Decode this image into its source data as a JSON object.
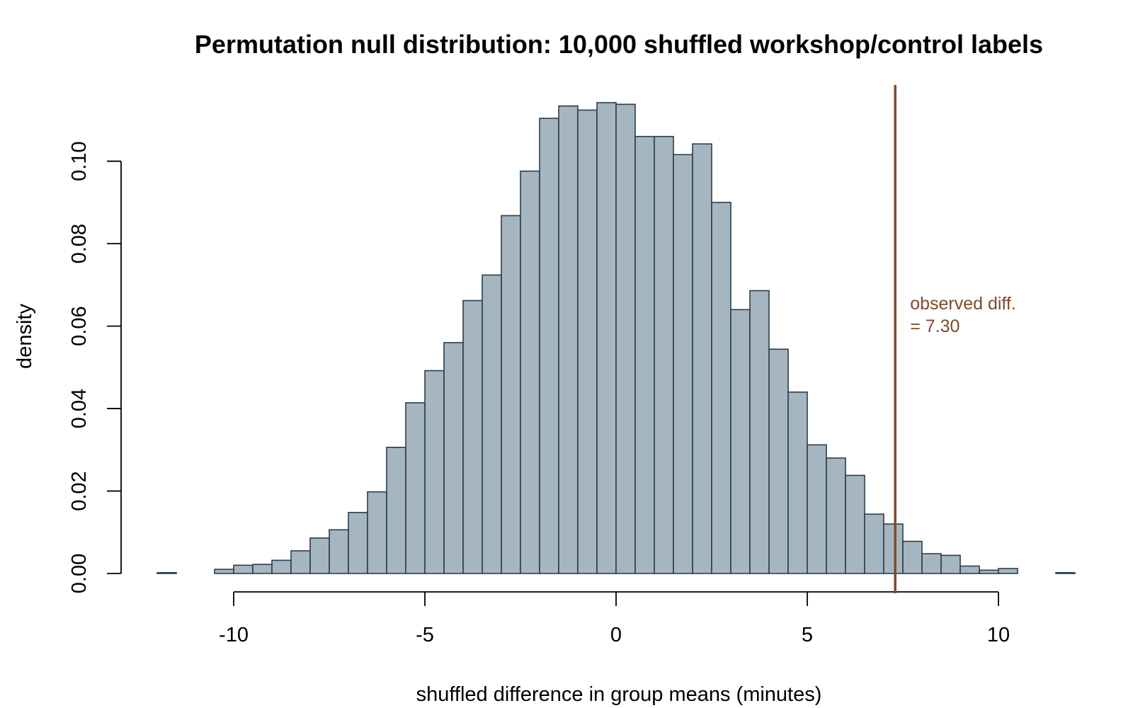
{
  "chart_data": {
    "type": "bar",
    "title": "Permutation null distribution: 10,000 shuffled workshop/control labels",
    "xlabel": "shuffled difference in group means (minutes)",
    "ylabel": "density",
    "xlim": [
      -12,
      12
    ],
    "ylim": [
      0,
      0.12
    ],
    "bin_width": 0.5,
    "x_ticks": [
      {
        "value": -10,
        "label": "-10"
      },
      {
        "value": -5,
        "label": "-5"
      },
      {
        "value": 0,
        "label": "0"
      },
      {
        "value": 5,
        "label": "5"
      },
      {
        "value": 10,
        "label": "10"
      }
    ],
    "y_ticks": [
      {
        "value": 0,
        "label": "0.00"
      },
      {
        "value": 0.02,
        "label": "0.02"
      },
      {
        "value": 0.04,
        "label": "0.04"
      },
      {
        "value": 0.06,
        "label": "0.06"
      },
      {
        "value": 0.08,
        "label": "0.08"
      },
      {
        "value": 0.1,
        "label": "0.10"
      }
    ],
    "bins": [
      {
        "x0": -12.0,
        "density": 0.0002
      },
      {
        "x0": -11.5,
        "density": 0.0
      },
      {
        "x0": -11.0,
        "density": 0.0
      },
      {
        "x0": -10.5,
        "density": 0.001
      },
      {
        "x0": -10.0,
        "density": 0.002
      },
      {
        "x0": -9.5,
        "density": 0.0022
      },
      {
        "x0": -9.0,
        "density": 0.0032
      },
      {
        "x0": -8.5,
        "density": 0.0055
      },
      {
        "x0": -8.0,
        "density": 0.0086
      },
      {
        "x0": -7.5,
        "density": 0.0106
      },
      {
        "x0": -7.0,
        "density": 0.0148
      },
      {
        "x0": -6.5,
        "density": 0.0198
      },
      {
        "x0": -6.0,
        "density": 0.0306
      },
      {
        "x0": -5.5,
        "density": 0.0414
      },
      {
        "x0": -5.0,
        "density": 0.0492
      },
      {
        "x0": -4.5,
        "density": 0.056
      },
      {
        "x0": -4.0,
        "density": 0.0662
      },
      {
        "x0": -3.5,
        "density": 0.0724
      },
      {
        "x0": -3.0,
        "density": 0.0868
      },
      {
        "x0": -2.5,
        "density": 0.0976
      },
      {
        "x0": -2.0,
        "density": 0.1104
      },
      {
        "x0": -1.5,
        "density": 0.1134
      },
      {
        "x0": -1.0,
        "density": 0.1124
      },
      {
        "x0": -0.5,
        "density": 0.1142
      },
      {
        "x0": 0.0,
        "density": 0.1138
      },
      {
        "x0": 0.5,
        "density": 0.106
      },
      {
        "x0": 1.0,
        "density": 0.106
      },
      {
        "x0": 1.5,
        "density": 0.1016
      },
      {
        "x0": 2.0,
        "density": 0.1042
      },
      {
        "x0": 2.5,
        "density": 0.09
      },
      {
        "x0": 3.0,
        "density": 0.064
      },
      {
        "x0": 3.5,
        "density": 0.0686
      },
      {
        "x0": 4.0,
        "density": 0.0544
      },
      {
        "x0": 4.5,
        "density": 0.044
      },
      {
        "x0": 5.0,
        "density": 0.0312
      },
      {
        "x0": 5.5,
        "density": 0.028
      },
      {
        "x0": 6.0,
        "density": 0.0238
      },
      {
        "x0": 6.5,
        "density": 0.0144
      },
      {
        "x0": 7.0,
        "density": 0.012
      },
      {
        "x0": 7.5,
        "density": 0.0078
      },
      {
        "x0": 8.0,
        "density": 0.0048
      },
      {
        "x0": 8.5,
        "density": 0.0044
      },
      {
        "x0": 9.0,
        "density": 0.0018
      },
      {
        "x0": 9.5,
        "density": 0.0008
      },
      {
        "x0": 10.0,
        "density": 0.0012
      },
      {
        "x0": 10.5,
        "density": 0.0
      },
      {
        "x0": 11.0,
        "density": 0.0
      },
      {
        "x0": 11.5,
        "density": 0.0002
      }
    ],
    "observed": {
      "value": 7.3,
      "label_line1": "observed diff.",
      "label_line2": "= 7.30"
    },
    "colors": {
      "bar_fill": "#a6b6c0",
      "bar_stroke": "#2b3e4c",
      "observed_line": "#7e4a2e",
      "axis": "#000000"
    },
    "grid": false,
    "legend": "none"
  }
}
